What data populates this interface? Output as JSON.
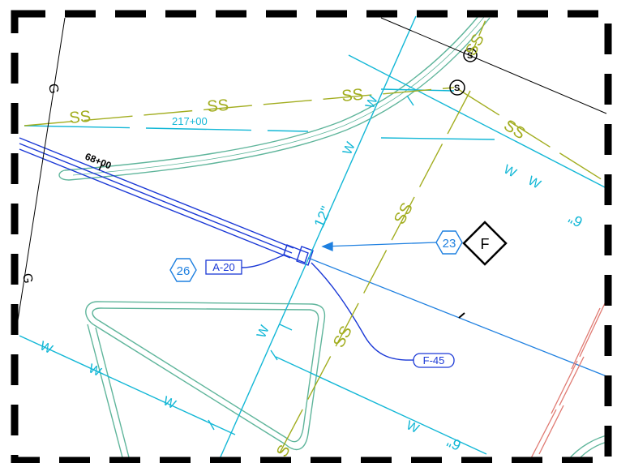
{
  "sheet": {
    "colors": {
      "water": "#12b7d6",
      "sewer": "#a2ad1f",
      "gas": "#000000",
      "curb": "#5fb59b",
      "pipe": "#1a38d6",
      "utility": "#1f80e0",
      "callout": "#1f80e0",
      "hatch": "#e07a72"
    }
  },
  "labels": {
    "ss_1": "SS",
    "ss_2": "SS",
    "ss_3": "SS",
    "ss_4": "SS",
    "ss_5": "SS",
    "ss_6": "SS",
    "ss_7": "SS",
    "ss_8": "S",
    "g_1": "G",
    "g_2": "G",
    "w_1": "W",
    "w_2": "W",
    "w_3": "W",
    "w_4": "W",
    "w_5": "W",
    "w_6": "W",
    "w_7": "W",
    "w_8": "W",
    "w_9": "W",
    "station_main": "217+00",
    "station_pipe": "68+00",
    "pipe_size_12": "12\"",
    "pipe_size_6a": "6\"",
    "pipe_size_6b": "6\"",
    "manhole_s": "S",
    "manhole_s2": "S"
  },
  "callouts": {
    "hex_23": "23",
    "hex_26": "26",
    "diamond_f": "F",
    "tag_a20": "A-20",
    "tag_f45": "F-45"
  }
}
